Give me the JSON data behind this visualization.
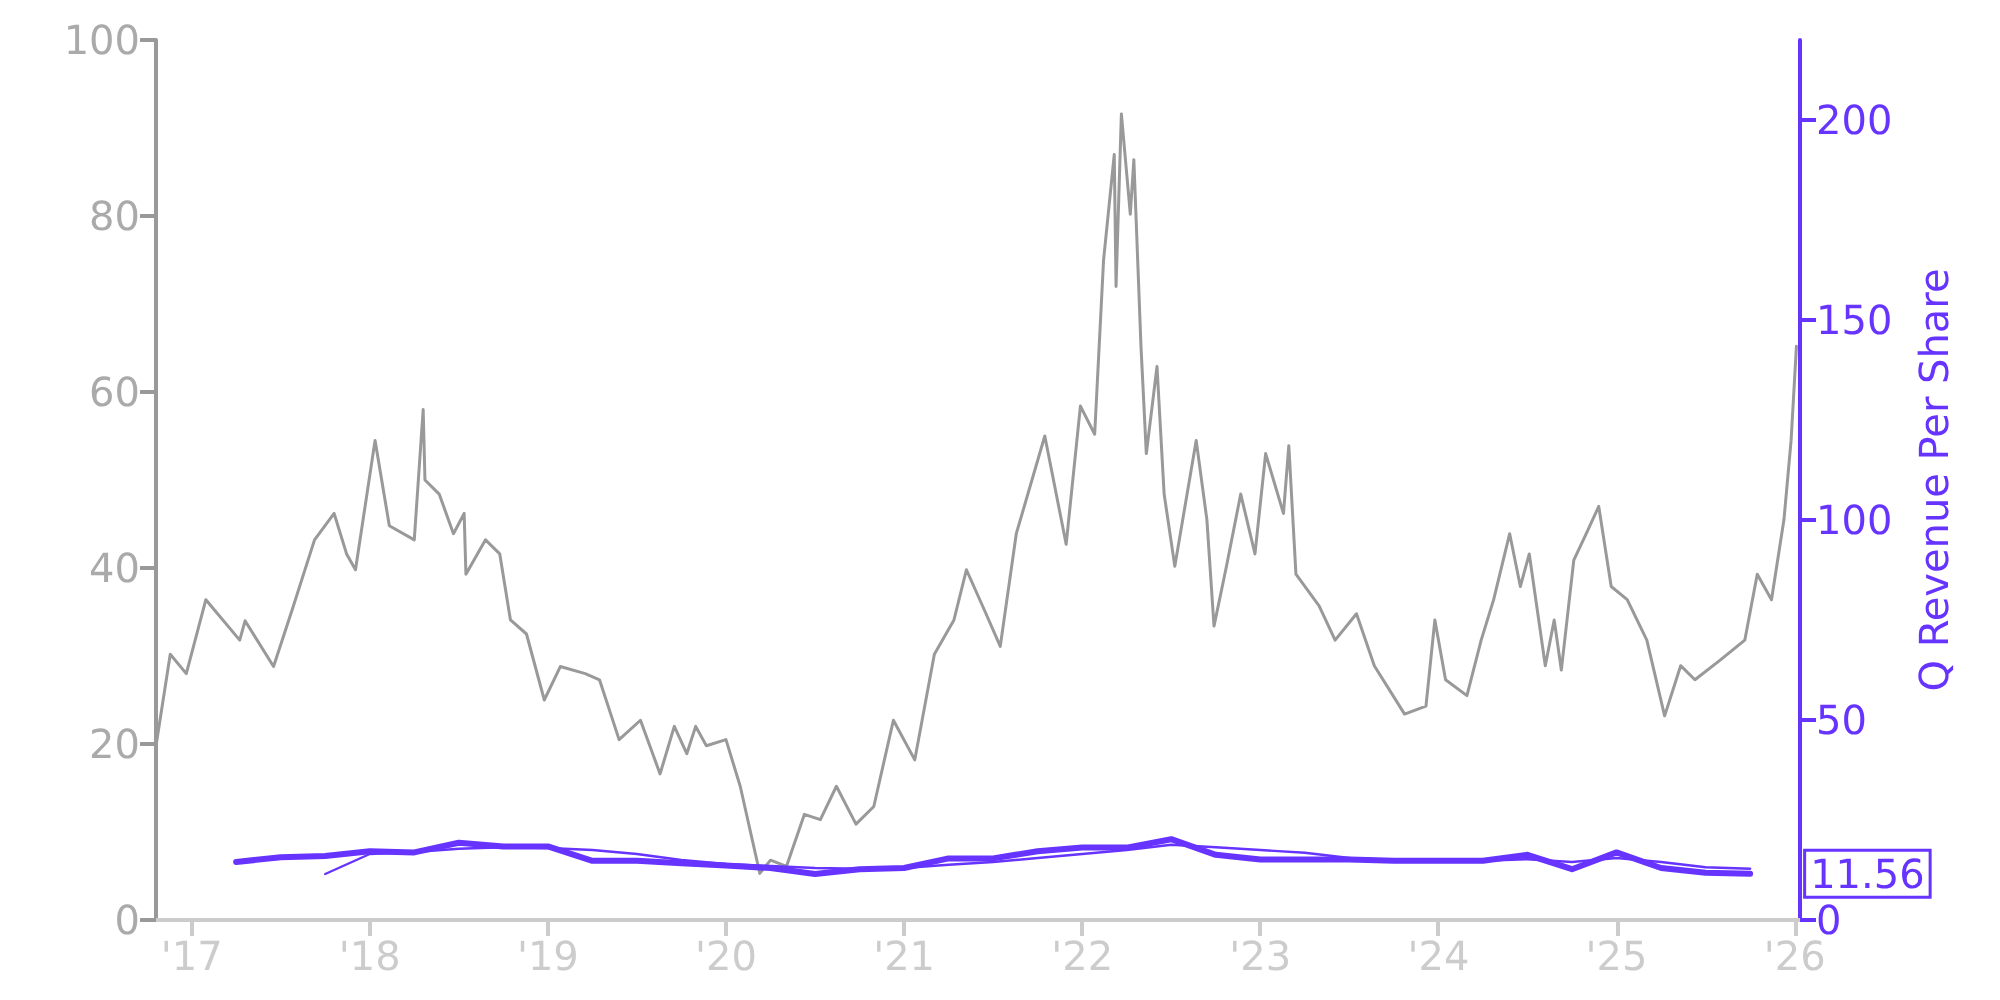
{
  "chart_data": {
    "type": "line",
    "y2label": "Q Revenue Per Share",
    "xlim": [
      2016.8,
      2026.03
    ],
    "xticks": [
      {
        "value": 2017,
        "label": "'17"
      },
      {
        "value": 2018,
        "label": "'18"
      },
      {
        "value": 2019,
        "label": "'19"
      },
      {
        "value": 2020,
        "label": "'20"
      },
      {
        "value": 2021,
        "label": "'21"
      },
      {
        "value": 2022,
        "label": "'22"
      },
      {
        "value": 2023,
        "label": "'23"
      },
      {
        "value": 2024,
        "label": "'24"
      },
      {
        "value": 2025,
        "label": "'25"
      },
      {
        "value": 2026,
        "label": "'26"
      }
    ],
    "ylim": [
      0,
      100
    ],
    "yticks": [
      0,
      20,
      40,
      60,
      80,
      100
    ],
    "y2lim": [
      0,
      220
    ],
    "y2ticks": [
      0,
      50,
      100,
      150,
      200
    ],
    "grid": false,
    "marker": "none",
    "series": [
      {
        "color": "#999999",
        "x": [
          2016.8,
          2016.88,
          2016.97,
          2017.08,
          2017.27,
          2017.3,
          2017.46,
          2017.57,
          2017.69,
          2017.8,
          2017.87,
          2017.92,
          2018.03,
          2018.11,
          2018.25,
          2018.3,
          2018.31,
          2018.39,
          2018.47,
          2018.53,
          2018.54,
          2018.65,
          2018.73,
          2018.79,
          2018.88,
          2018.98,
          2019.07,
          2019.21,
          2019.29,
          2019.4,
          2019.52,
          2019.63,
          2019.71,
          2019.78,
          2019.83,
          2019.89,
          2020.0,
          2020.08,
          2020.19,
          2020.25,
          2020.34,
          2020.44,
          2020.53,
          2020.62,
          2020.73,
          2020.83,
          2020.94,
          2021.06,
          2021.17,
          2021.28,
          2021.35,
          2021.46,
          2021.54,
          2021.63,
          2021.79,
          2021.91,
          2021.99,
          2022.07,
          2022.12,
          2022.18,
          2022.19,
          2022.22,
          2022.27,
          2022.29,
          2022.33,
          2022.36,
          2022.42,
          2022.46,
          2022.52,
          2022.64,
          2022.7,
          2022.74,
          2022.81,
          2022.89,
          2022.97,
          2023.03,
          2023.13,
          2023.16,
          2023.2,
          2023.33,
          2023.42,
          2023.54,
          2023.64,
          2023.81,
          2023.93,
          2023.98,
          2024.04,
          2024.16,
          2024.24,
          2024.31,
          2024.4,
          2024.46,
          2024.51,
          2024.6,
          2024.65,
          2024.69,
          2024.76,
          2024.83,
          2024.9,
          2024.97,
          2025.06,
          2025.17,
          2025.27,
          2025.36,
          2025.44,
          2025.58,
          2025.72,
          2025.79,
          2025.87,
          2025.94,
          2025.98,
          2026.01
        ],
        "values": [
          19.8,
          30.2,
          28,
          36.4,
          31.8,
          34,
          28.8,
          35.6,
          43.2,
          46.2,
          41.6,
          39.8,
          54.5,
          44.8,
          43.2,
          58,
          50,
          48.4,
          43.9,
          46.2,
          39.3,
          43.2,
          41.6,
          34.1,
          32.5,
          25,
          28.8,
          28,
          27.3,
          20.5,
          22.7,
          16.6,
          22,
          18.9,
          22,
          19.8,
          20.5,
          15.2,
          5.3,
          6.8,
          6.1,
          12,
          11.4,
          15.2,
          10.9,
          12.9,
          22.7,
          18.2,
          30.2,
          34.1,
          39.8,
          34.8,
          31.1,
          43.9,
          55,
          42.7,
          58.4,
          55.2,
          75,
          87,
          72,
          91.6,
          80.2,
          86.4,
          65.2,
          53,
          62.9,
          48.4,
          40.2,
          54.5,
          45.5,
          33.4,
          40.2,
          48.4,
          41.6,
          53,
          46.2,
          53.9,
          39.3,
          35.7,
          31.8,
          34.8,
          28.9,
          23.4,
          24.3,
          34.1,
          27.3,
          25.5,
          31.8,
          36.4,
          43.9,
          37.9,
          41.6,
          28.9,
          34.1,
          28.4,
          40.9,
          43.9,
          47,
          37.9,
          36.4,
          31.8,
          23.2,
          28.9,
          27.3,
          29.5,
          31.8,
          39.3,
          36.4,
          45.5,
          54.5,
          65.2
        ]
      },
      {
        "color": "#6633ff",
        "axis": "y2",
        "x": [
          2017.75,
          2018.0,
          2018.25,
          2018.5,
          2018.75,
          2019.0,
          2019.25,
          2019.5,
          2019.75,
          2020.0,
          2020.25,
          2020.5,
          2020.75,
          2021.0,
          2021.25,
          2021.5,
          2021.75,
          2022.0,
          2022.25,
          2022.5,
          2022.75,
          2023.0,
          2023.25,
          2023.5,
          2023.75,
          2024.0,
          2024.25,
          2024.5,
          2024.75,
          2025.0,
          2025.25,
          2025.5,
          2025.75
        ],
        "values": [
          11.5,
          16.5,
          17.0,
          17.8,
          18.2,
          18.0,
          17.5,
          16.5,
          15.0,
          14.0,
          13.5,
          13.0,
          12.8,
          13.0,
          13.8,
          14.5,
          15.5,
          16.5,
          17.5,
          18.8,
          18.2,
          17.5,
          16.8,
          15.5,
          15.0,
          14.8,
          14.8,
          15.2,
          14.5,
          15.5,
          14.5,
          13.2,
          12.8
        ]
      },
      {
        "color": "#6633ff",
        "axis": "y2",
        "x": [
          2017.25,
          2017.5,
          2017.75,
          2018.0,
          2018.25,
          2018.5,
          2018.75,
          2019.0,
          2019.25,
          2019.5,
          2019.75,
          2020.0,
          2020.25,
          2020.5,
          2020.75,
          2021.0,
          2021.25,
          2021.5,
          2021.75,
          2022.0,
          2022.25,
          2022.5,
          2022.75,
          2023.0,
          2023.25,
          2023.5,
          2023.75,
          2024.0,
          2024.25,
          2024.5,
          2024.75,
          2025.0,
          2025.25,
          2025.5,
          2025.75
        ],
        "values": [
          14.5,
          15.7,
          16.0,
          17.2,
          16.9,
          19.3,
          18.4,
          18.4,
          14.8,
          14.8,
          14.2,
          13.6,
          13.0,
          11.5,
          12.7,
          13.0,
          15.4,
          15.4,
          17.2,
          18.1,
          18.1,
          20.2,
          16.3,
          15.1,
          15.1,
          15.1,
          14.8,
          14.8,
          14.8,
          16.3,
          12.7,
          16.9,
          13.0,
          11.8,
          11.56
        ],
        "value_labels": [
          null,
          null,
          null,
          null,
          null,
          null,
          null,
          null,
          null,
          null,
          null,
          null,
          null,
          null,
          null,
          null,
          null,
          null,
          null,
          null,
          null,
          null,
          null,
          null,
          null,
          null,
          null,
          null,
          null,
          null,
          null,
          null,
          null,
          null,
          "11.56"
        ]
      }
    ]
  }
}
